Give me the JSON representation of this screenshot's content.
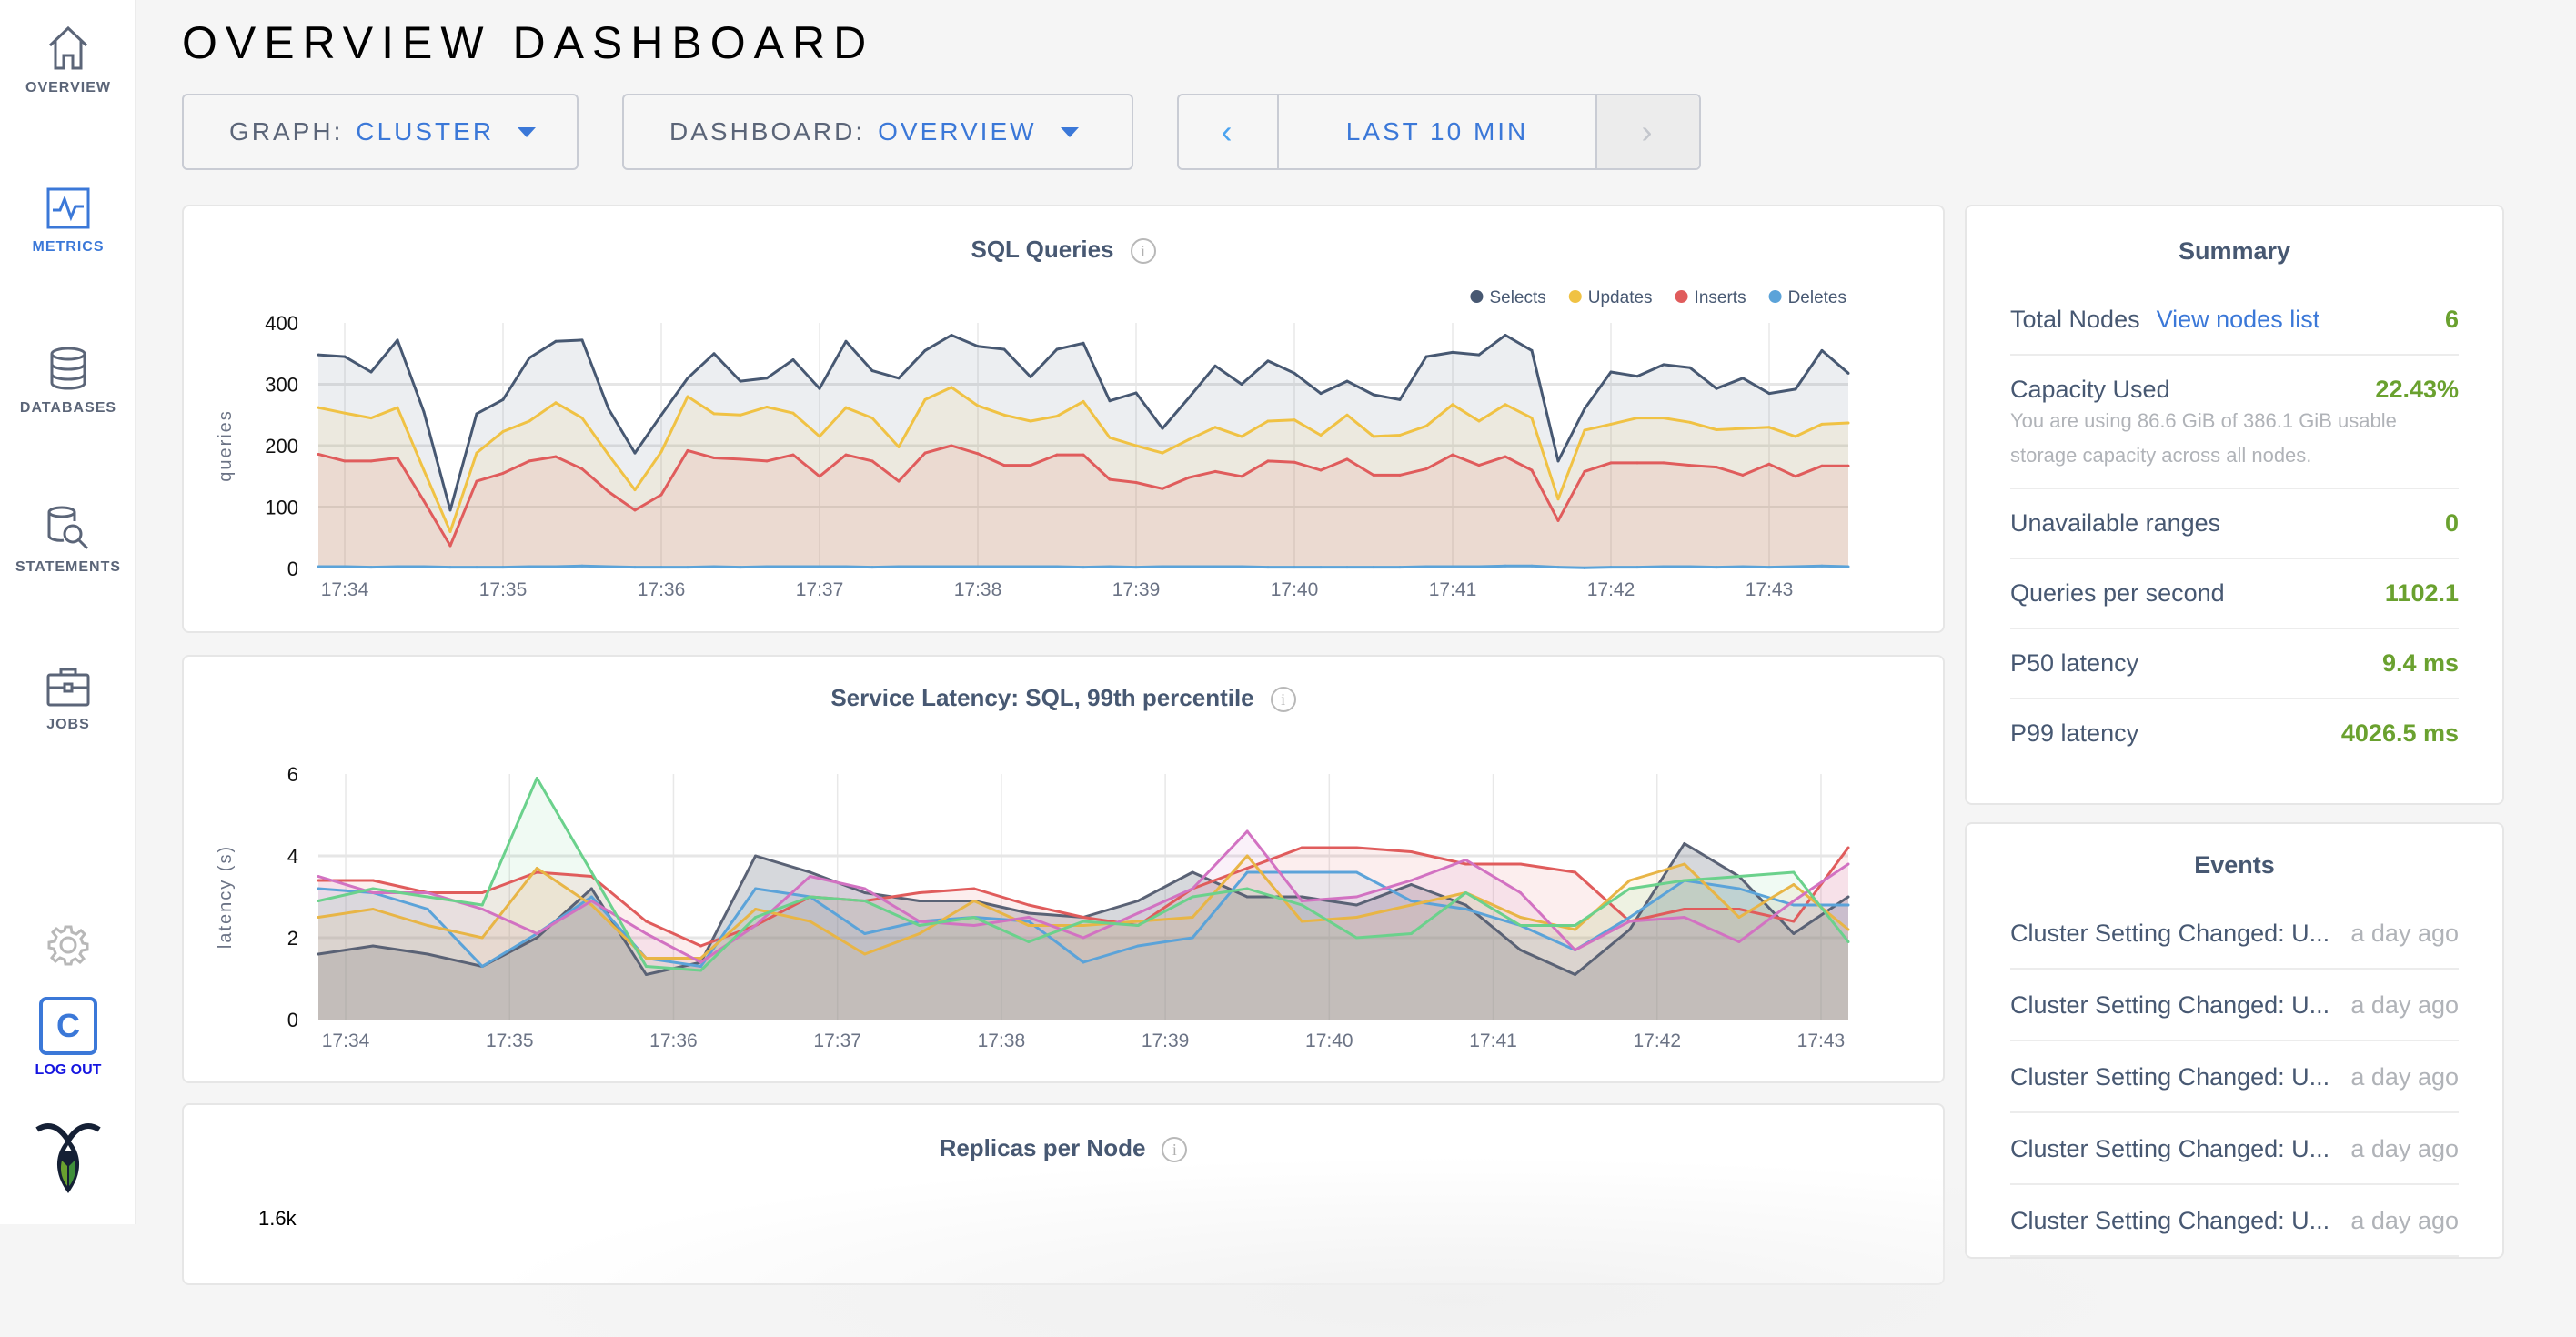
{
  "sidebar": {
    "items": [
      {
        "label": "OVERVIEW",
        "icon": "home-icon",
        "active": false
      },
      {
        "label": "METRICS",
        "icon": "metrics-icon",
        "active": true
      },
      {
        "label": "DATABASES",
        "icon": "database-icon",
        "active": false
      },
      {
        "label": "STATEMENTS",
        "icon": "statements-icon",
        "active": false
      },
      {
        "label": "JOBS",
        "icon": "briefcase-icon",
        "active": false
      }
    ],
    "settings_icon": "gear-icon",
    "user_initial": "C",
    "logout_label": "LOG OUT",
    "logo": "cockroach-logo"
  },
  "header": {
    "title": "OVERVIEW DASHBOARD"
  },
  "controls": {
    "graph_label": "GRAPH:",
    "graph_value": "CLUSTER",
    "dashboard_label": "DASHBOARD:",
    "dashboard_value": "OVERVIEW",
    "time_prev": "‹",
    "time_range": "LAST 10 MIN",
    "time_next": "›"
  },
  "colors": {
    "accent": "#3b78d8",
    "positive": "#6aa12f"
  },
  "chart_data": [
    {
      "type": "line",
      "title": "SQL Queries",
      "ylabel": "queries",
      "ylim": [
        0,
        400
      ],
      "yticks": [
        "0",
        "100",
        "200",
        "300",
        "400"
      ],
      "xticks": [
        "17:34",
        "17:35",
        "17:36",
        "17:37",
        "17:38",
        "17:39",
        "17:40",
        "17:41",
        "17:42",
        "17:43"
      ],
      "x_start": "17:33:50",
      "x_end": "17:43:30",
      "step_seconds": 10,
      "grid": true,
      "legend": "top-right",
      "fill": true,
      "series": [
        {
          "name": "Selects",
          "color": "#475872",
          "values": [
            348,
            345,
            320,
            372,
            255,
            95,
            252,
            275,
            343,
            370,
            372,
            260,
            188,
            250,
            310,
            350,
            305,
            310,
            340,
            293,
            370,
            322,
            310,
            355,
            380,
            362,
            357,
            312,
            357,
            367,
            273,
            286,
            228,
            278,
            330,
            300,
            338,
            318,
            285,
            305,
            283,
            275,
            345,
            352,
            348,
            380,
            355,
            175,
            260,
            320,
            313,
            332,
            327,
            293,
            310,
            285,
            292,
            355,
            318
          ]
        },
        {
          "name": "Updates",
          "color": "#f0c244",
          "values": [
            262,
            253,
            245,
            262,
            160,
            60,
            188,
            223,
            240,
            270,
            245,
            185,
            128,
            190,
            280,
            252,
            250,
            263,
            253,
            215,
            262,
            245,
            198,
            275,
            295,
            265,
            250,
            240,
            248,
            272,
            213,
            200,
            188,
            210,
            230,
            215,
            240,
            242,
            217,
            250,
            215,
            217,
            232,
            267,
            240,
            267,
            245,
            113,
            225,
            235,
            245,
            245,
            238,
            226,
            228,
            230,
            215,
            235,
            237
          ]
        },
        {
          "name": "Inserts",
          "color": "#e05c5c",
          "values": [
            186,
            175,
            175,
            180,
            110,
            37,
            142,
            155,
            175,
            182,
            162,
            125,
            95,
            120,
            192,
            180,
            178,
            175,
            185,
            150,
            185,
            175,
            142,
            188,
            200,
            187,
            168,
            168,
            185,
            185,
            145,
            140,
            130,
            148,
            158,
            150,
            175,
            173,
            160,
            178,
            152,
            152,
            162,
            185,
            168,
            182,
            160,
            78,
            158,
            172,
            172,
            172,
            168,
            165,
            152,
            170,
            150,
            167,
            167
          ]
        },
        {
          "name": "Deletes",
          "color": "#5ba3d9",
          "values": [
            3,
            3,
            2,
            3,
            3,
            2,
            2,
            2,
            3,
            3,
            4,
            3,
            2,
            2,
            2,
            3,
            2,
            3,
            3,
            3,
            3,
            2,
            3,
            3,
            3,
            3,
            3,
            3,
            3,
            2,
            3,
            2,
            3,
            3,
            3,
            3,
            2,
            2,
            2,
            2,
            2,
            2,
            3,
            3,
            3,
            4,
            4,
            2,
            1,
            2,
            2,
            3,
            3,
            2,
            3,
            2,
            3,
            4,
            3
          ]
        }
      ]
    },
    {
      "type": "line",
      "title": "Service Latency: SQL, 99th percentile",
      "ylabel": "latency (s)",
      "ylim": [
        0,
        6
      ],
      "yticks": [
        "0",
        "2",
        "4",
        "6"
      ],
      "xticks": [
        "17:34",
        "17:35",
        "17:36",
        "17:37",
        "17:38",
        "17:39",
        "17:40",
        "17:41",
        "17:42",
        "17:43"
      ],
      "x_start": "17:33:50",
      "x_end": "17:43:10",
      "step_seconds": 20,
      "grid": true,
      "fill": true,
      "series": [
        {
          "color": "#5a6275",
          "values": [
            1.6,
            1.8,
            1.6,
            1.3,
            2.0,
            3.2,
            1.1,
            1.4,
            4.0,
            3.6,
            3.1,
            2.9,
            2.9,
            2.6,
            2.5,
            2.9,
            3.6,
            3.0,
            3.0,
            2.8,
            3.3,
            2.8,
            1.7,
            1.1,
            2.2,
            4.3,
            3.5,
            2.1,
            3.0
          ]
        },
        {
          "color": "#e05c5c",
          "values": [
            3.4,
            3.4,
            3.1,
            3.1,
            3.6,
            3.5,
            2.4,
            1.8,
            2.3,
            3.0,
            2.9,
            3.1,
            3.2,
            2.8,
            2.5,
            2.3,
            3.2,
            3.7,
            4.2,
            4.2,
            4.1,
            3.8,
            3.8,
            3.6,
            2.4,
            2.7,
            2.7,
            2.4,
            4.2
          ]
        },
        {
          "color": "#5ba3d9",
          "values": [
            3.2,
            3.1,
            2.7,
            1.3,
            2.1,
            3.0,
            1.5,
            1.3,
            3.2,
            3.0,
            2.1,
            2.4,
            2.5,
            2.4,
            1.4,
            1.8,
            2.0,
            3.6,
            3.6,
            3.6,
            2.9,
            2.7,
            2.3,
            1.7,
            2.5,
            3.4,
            3.2,
            2.8,
            2.8
          ]
        },
        {
          "color": "#e8b546",
          "values": [
            2.5,
            2.7,
            2.3,
            2.0,
            3.7,
            2.8,
            1.5,
            1.5,
            2.7,
            2.4,
            1.6,
            2.1,
            2.9,
            2.3,
            2.3,
            2.4,
            2.5,
            4.0,
            2.4,
            2.5,
            2.8,
            3.1,
            2.5,
            2.2,
            3.4,
            3.8,
            2.5,
            3.3,
            2.2
          ]
        },
        {
          "color": "#d272c2",
          "values": [
            3.5,
            3.1,
            3.1,
            2.7,
            2.1,
            2.9,
            2.1,
            1.4,
            2.3,
            3.5,
            3.2,
            2.4,
            2.3,
            2.5,
            2.0,
            2.6,
            3.2,
            4.6,
            2.9,
            3.0,
            3.4,
            3.9,
            3.1,
            1.7,
            2.4,
            2.5,
            1.9,
            2.9,
            3.8
          ]
        },
        {
          "color": "#6bd18c",
          "values": [
            2.9,
            3.2,
            3.0,
            2.8,
            5.9,
            3.6,
            1.3,
            1.2,
            2.5,
            3.0,
            2.9,
            2.3,
            2.5,
            1.9,
            2.4,
            2.3,
            3.0,
            3.2,
            2.8,
            2.0,
            2.1,
            3.1,
            2.3,
            2.3,
            3.2,
            3.4,
            3.5,
            3.6,
            1.9
          ]
        }
      ]
    },
    {
      "type": "line",
      "title": "Replicas per Node",
      "yticks": [
        "1.6k"
      ]
    }
  ],
  "summary": {
    "title": "Summary",
    "total_nodes_label": "Total Nodes",
    "view_nodes_link": "View nodes list",
    "total_nodes": "6",
    "capacity_label": "Capacity Used",
    "capacity_value": "22.43%",
    "capacity_note": "You are using 86.6 GiB of 386.1 GiB usable storage capacity across all nodes.",
    "unavailable_label": "Unavailable ranges",
    "unavailable_value": "0",
    "qps_label": "Queries per second",
    "qps_value": "1102.1",
    "p50_label": "P50 latency",
    "p50_value": "9.4 ms",
    "p99_label": "P99 latency",
    "p99_value": "4026.5 ms"
  },
  "events": {
    "title": "Events",
    "items": [
      {
        "text": "Cluster Setting Changed: U...",
        "time": "a day ago"
      },
      {
        "text": "Cluster Setting Changed: U...",
        "time": "a day ago"
      },
      {
        "text": "Cluster Setting Changed: U...",
        "time": "a day ago"
      },
      {
        "text": "Cluster Setting Changed: U...",
        "time": "a day ago"
      },
      {
        "text": "Cluster Setting Changed: U...",
        "time": "a day ago"
      }
    ]
  }
}
